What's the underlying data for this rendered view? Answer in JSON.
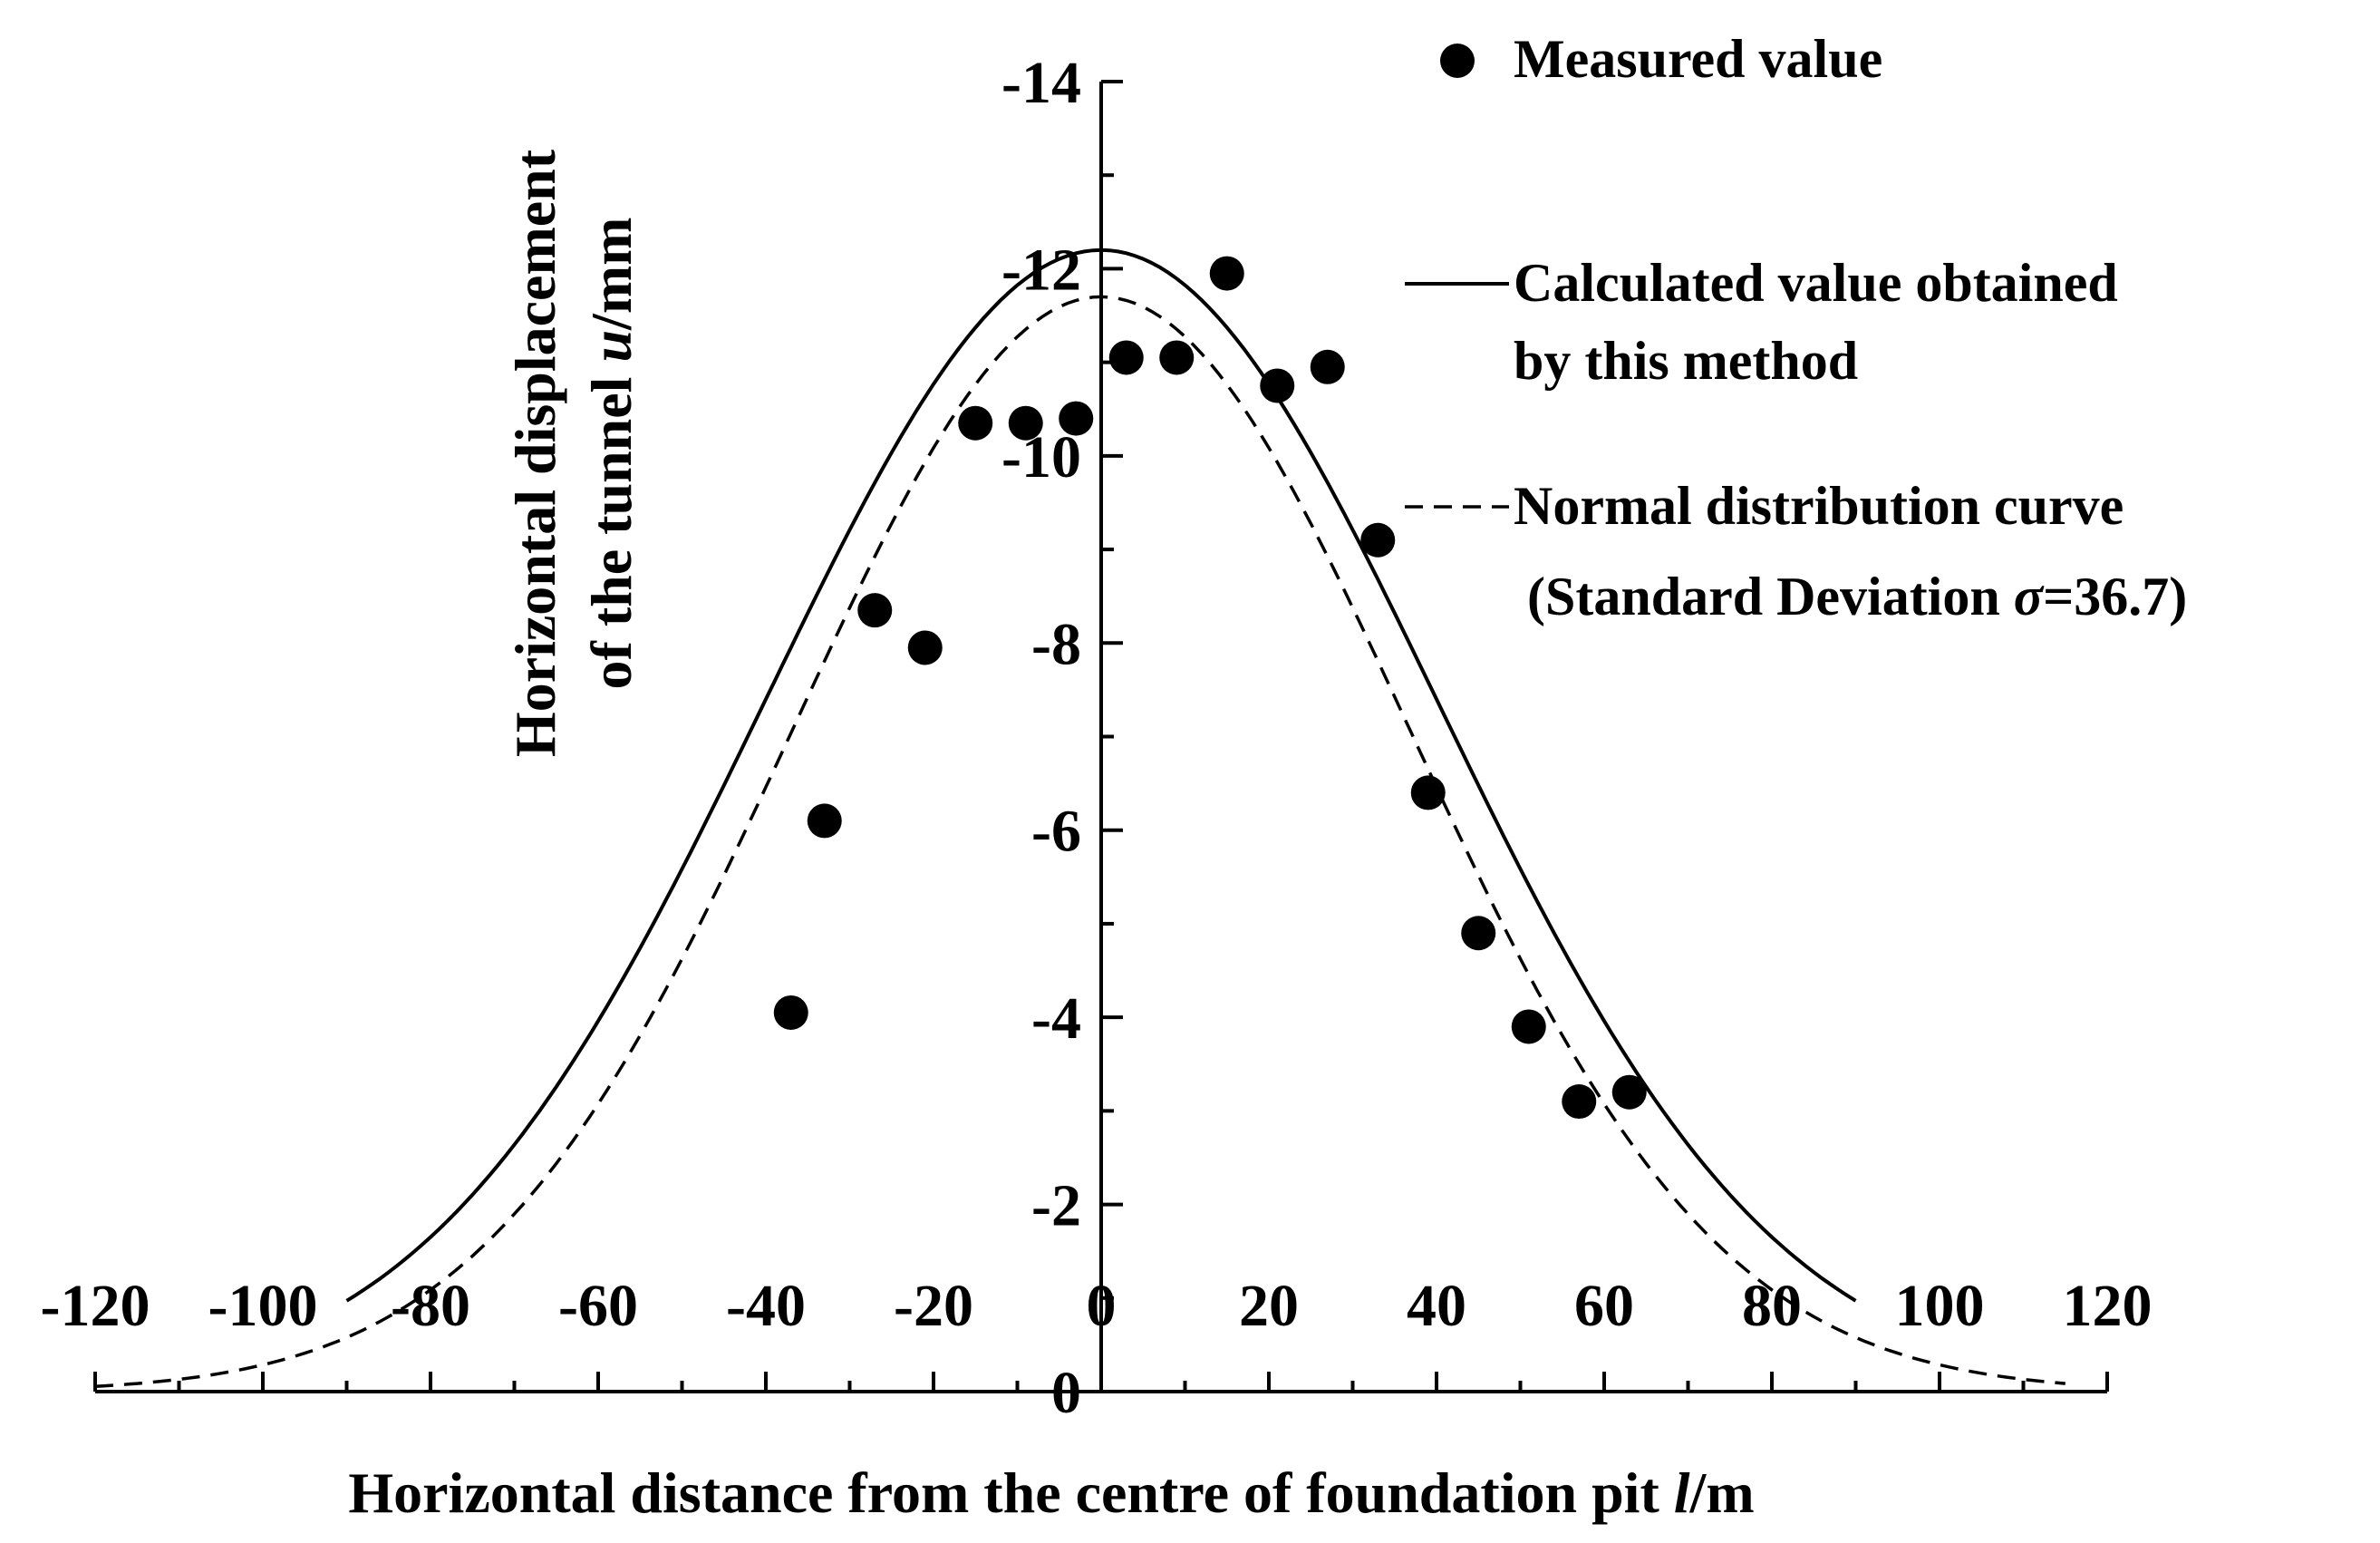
{
  "chart_data": {
    "type": "scatter",
    "title": "",
    "xlabel": {
      "prefix": "Horizontal distance from the centre of foundation pit ",
      "var": "l",
      "unit": "/m"
    },
    "ylabel": {
      "line1": "Horizontal displacement",
      "line2_prefix": "of the tunnel ",
      "line2_var": "u",
      "line2_unit": "/mm"
    },
    "xlim": [
      -120,
      120
    ],
    "ylim": [
      0,
      -14
    ],
    "x_ticks": [
      "-120",
      "-100",
      "-80",
      "-60",
      "-40",
      "-20",
      "0",
      "20",
      "40",
      "60",
      "80",
      "100",
      "120"
    ],
    "x_tick_values": [
      -120,
      -100,
      -80,
      -60,
      -40,
      -20,
      0,
      20,
      40,
      60,
      80,
      100,
      120
    ],
    "y_ticks": [
      "0",
      "-2",
      "-4",
      "-6",
      "-8",
      "-10",
      "-12",
      "-14"
    ],
    "y_tick_values": [
      0,
      -2,
      -4,
      -6,
      -8,
      -10,
      -12,
      -14
    ],
    "series": [
      {
        "name": "Measured value",
        "kind": "scatter",
        "x": [
          -37,
          -33,
          -27,
          -21,
          -15,
          -9,
          -3,
          3,
          9,
          15,
          21,
          27,
          33,
          39,
          45,
          51,
          57,
          63
        ],
        "y": [
          -4.05,
          -6.1,
          -8.35,
          -7.95,
          -10.35,
          -10.35,
          -10.4,
          -11.05,
          -11.05,
          -11.95,
          -10.75,
          -10.95,
          -9.1,
          -6.4,
          -4.9,
          -3.9,
          -3.1,
          -3.2
        ]
      },
      {
        "name": "Calculated value obtained by this method",
        "kind": "line",
        "style": "solid",
        "peak": -12.2,
        "center": 0,
        "sigma": 40,
        "x_range": [
          -90,
          90
        ]
      },
      {
        "name": "Normal distribution curve (Standard Deviation σ=36.7)",
        "kind": "line",
        "style": "dashed",
        "peak": -11.7,
        "center": 0,
        "sigma": 36.7,
        "x_range": [
          -120,
          115
        ]
      }
    ],
    "legend": {
      "position": "top-right",
      "measured": "Measured value",
      "calc_line1": "Calculated value   obtained",
      "calc_line2": "by this method",
      "normal_line1": "Normal distribution curve",
      "normal_line2_prefix": " (Standard Deviation ",
      "normal_line2_sigma": "σ",
      "normal_line2_suffix": "=36.7)"
    },
    "colors": {
      "ink": "#000000",
      "background": "#ffffff"
    }
  }
}
